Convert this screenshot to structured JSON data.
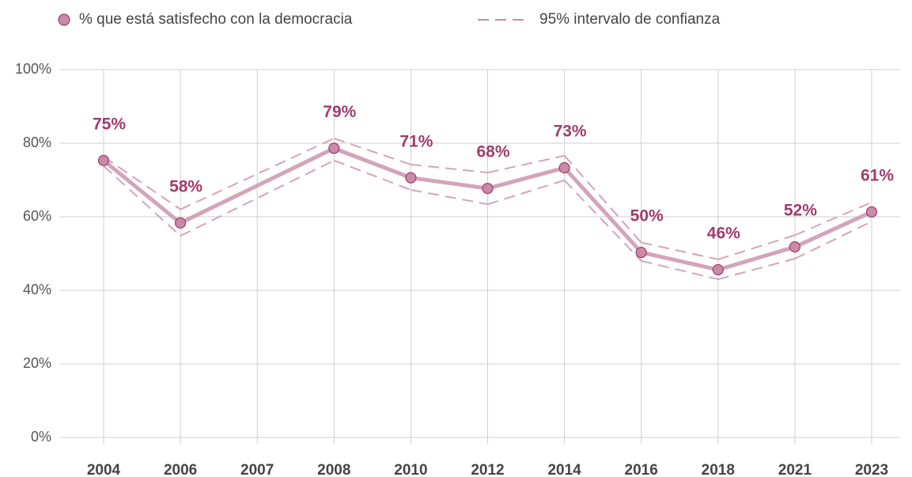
{
  "chart_data": {
    "type": "line",
    "categories": [
      "2004",
      "2006",
      "2007",
      "2008",
      "2010",
      "2012",
      "2014",
      "2016",
      "2018",
      "2021",
      "2023"
    ],
    "series": [
      {
        "name": "% que está satisfecho con la democracia",
        "color": "#d3a4ba",
        "values": [
          75.3,
          58.3,
          null,
          78.6,
          70.6,
          67.7,
          73.3,
          50.3,
          45.6,
          51.8,
          61.3
        ],
        "value_labels": [
          "75%",
          "58%",
          null,
          "79%",
          "71%",
          "68%",
          "73%",
          "50%",
          "46%",
          "52%",
          "61%"
        ]
      }
    ],
    "confidence_interval": {
      "name": "95% intervalo de confianza",
      "color": "#d3a4ba",
      "upper": [
        76.3,
        62,
        null,
        81.3,
        74.2,
        72,
        76.6,
        53,
        48.4,
        55,
        63.9
      ],
      "lower": [
        73.8,
        54.8,
        null,
        75.3,
        67.3,
        63.4,
        69.9,
        48,
        43,
        48.6,
        58.7
      ]
    },
    "ylim": [
      0,
      100
    ],
    "yticks": [
      {
        "value": 0,
        "label": "0%"
      },
      {
        "value": 20,
        "label": "20%"
      },
      {
        "value": 40,
        "label": "40%"
      },
      {
        "value": 60,
        "label": "60%"
      },
      {
        "value": 80,
        "label": "80%"
      },
      {
        "value": 100,
        "label": "100%"
      }
    ],
    "grid": true
  }
}
